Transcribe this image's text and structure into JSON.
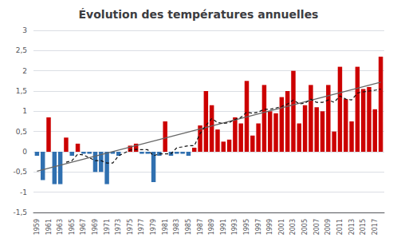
{
  "chart_data": {
    "type": "bar",
    "title": "Évolution des températures annuelles",
    "x": [
      1959,
      1960,
      1961,
      1962,
      1963,
      1964,
      1965,
      1966,
      1967,
      1968,
      1969,
      1970,
      1971,
      1972,
      1973,
      1974,
      1975,
      1976,
      1977,
      1978,
      1979,
      1980,
      1981,
      1982,
      1983,
      1984,
      1985,
      1986,
      1987,
      1988,
      1989,
      1990,
      1991,
      1992,
      1993,
      1994,
      1995,
      1996,
      1997,
      1998,
      1999,
      2000,
      2001,
      2002,
      2003,
      2004,
      2005,
      2006,
      2007,
      2008,
      2009,
      2010,
      2011,
      2012,
      2013,
      2014,
      2015,
      2016,
      2017,
      2018
    ],
    "series": [
      {
        "type": "bar",
        "values": [
          -0.1,
          -0.7,
          0.85,
          -0.8,
          -0.8,
          0.35,
          -0.1,
          0.2,
          -0.05,
          -0.05,
          -0.5,
          -0.5,
          -0.8,
          -0.05,
          -0.1,
          0.0,
          0.15,
          0.2,
          -0.05,
          -0.05,
          -0.75,
          -0.1,
          0.75,
          -0.1,
          -0.05,
          -0.05,
          -0.1,
          0.1,
          0.65,
          1.5,
          1.15,
          0.55,
          0.25,
          0.3,
          0.85,
          0.7,
          1.75,
          0.4,
          0.7,
          1.65,
          1.0,
          0.95,
          1.35,
          1.5,
          2.0,
          0.7,
          1.15,
          1.65,
          1.1,
          1.0,
          1.65,
          0.5,
          2.1,
          1.3,
          0.75,
          2.1,
          1.55,
          1.6,
          1.05,
          2.35
        ],
        "colors": [
          "#3070b0",
          "#3070b0",
          "#cc0000",
          "#3070b0",
          "#3070b0",
          "#cc0000",
          "#3070b0",
          "#cc0000",
          "#3070b0",
          "#3070b0",
          "#3070b0",
          "#3070b0",
          "#3070b0",
          "#3070b0",
          "#3070b0",
          "#cc0000",
          "#cc0000",
          "#cc0000",
          "#3070b0",
          "#3070b0",
          "#3070b0",
          "#3070b0",
          "#cc0000",
          "#3070b0",
          "#3070b0",
          "#3070b0",
          "#3070b0",
          "#cc0000",
          "#cc0000",
          "#cc0000",
          "#cc0000",
          "#cc0000",
          "#cc0000",
          "#cc0000",
          "#cc0000",
          "#cc0000",
          "#cc0000",
          "#cc0000",
          "#cc0000",
          "#cc0000",
          "#cc0000",
          "#cc0000",
          "#cc0000",
          "#cc0000",
          "#cc0000",
          "#cc0000",
          "#cc0000",
          "#cc0000",
          "#cc0000",
          "#cc0000",
          "#cc0000",
          "#cc0000",
          "#cc0000",
          "#cc0000",
          "#cc0000",
          "#cc0000",
          "#cc0000",
          "#cc0000",
          "#cc0000",
          "#cc0000"
        ]
      },
      {
        "type": "line",
        "x": [
          1959,
          2018
        ],
        "values": [
          -0.48,
          1.72
        ],
        "color": "#666666",
        "line_style": "solid"
      },
      {
        "type": "line",
        "values": [
          null,
          null,
          null,
          null,
          null,
          -0.26,
          -0.22,
          -0.06,
          -0.08,
          -0.15,
          -0.22,
          -0.22,
          -0.28,
          -0.28,
          -0.1,
          -0.03,
          0.04,
          0.06,
          0.05,
          0.05,
          -0.1,
          -0.05,
          -0.05,
          -0.05,
          0.1,
          0.12,
          0.15,
          0.15,
          0.45,
          0.65,
          0.82,
          0.72,
          0.7,
          0.72,
          0.8,
          0.85,
          0.98,
          0.95,
          0.98,
          1.05,
          1.05,
          1.08,
          1.12,
          1.18,
          1.28,
          1.18,
          1.2,
          1.3,
          1.22,
          1.22,
          1.28,
          1.22,
          1.38,
          1.3,
          1.28,
          1.45,
          1.48,
          1.5,
          1.52,
          1.55
        ],
        "color": "#111111",
        "line_style": "dashed"
      }
    ],
    "xlim": [
      1958.4,
      2018.6
    ],
    "xticks": [
      1959,
      1961,
      1963,
      1965,
      1967,
      1969,
      1971,
      1973,
      1975,
      1977,
      1979,
      1981,
      1983,
      1985,
      1987,
      1989,
      1991,
      1993,
      1995,
      1997,
      1999,
      2001,
      2003,
      2005,
      2007,
      2009,
      2011,
      2013,
      2015,
      2017
    ],
    "ylim": [
      -1.5,
      3.0
    ],
    "yticks": [
      {
        "value": -1.5,
        "label": "-1,5"
      },
      -1,
      {
        "value": -0.5,
        "label": "-0,5"
      },
      0,
      {
        "value": 0.5,
        "label": "0,5"
      },
      1,
      {
        "value": 1.5,
        "label": "1,5"
      },
      2,
      {
        "value": 2.5,
        "label": "2,5"
      },
      3
    ],
    "grid": true
  }
}
